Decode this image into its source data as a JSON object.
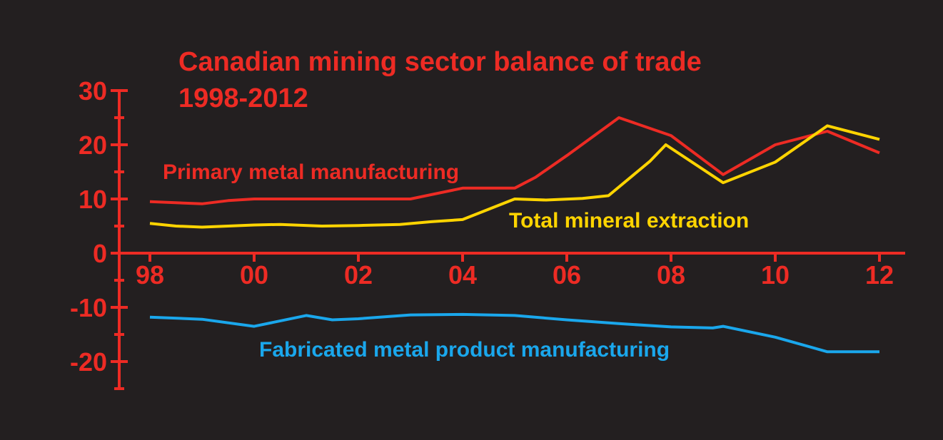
{
  "chart_data": {
    "type": "line",
    "title": "Canadian mining sector balance of trade",
    "subtitle": "1998-2012",
    "xlabel": "",
    "ylabel": "",
    "xlim": [
      1998,
      2012
    ],
    "ylim": [
      -25,
      30
    ],
    "x_ticks": [
      {
        "value": 1998,
        "label": "98"
      },
      {
        "value": 2000,
        "label": "00"
      },
      {
        "value": 2002,
        "label": "02"
      },
      {
        "value": 2004,
        "label": "04"
      },
      {
        "value": 2006,
        "label": "06"
      },
      {
        "value": 2008,
        "label": "08"
      },
      {
        "value": 2010,
        "label": "10"
      },
      {
        "value": 2012,
        "label": "12"
      }
    ],
    "y_ticks": [
      {
        "value": 30,
        "label": "30"
      },
      {
        "value": 20,
        "label": "20"
      },
      {
        "value": 10,
        "label": "10"
      },
      {
        "value": 0,
        "label": "0"
      },
      {
        "value": -10,
        "label": "-10"
      },
      {
        "value": -20,
        "label": "-20"
      }
    ],
    "y_minor_ticks": [
      25,
      15,
      5,
      -5,
      -15,
      -25
    ],
    "grid": false,
    "legend": "inline labels",
    "colors": {
      "background": "#231f20",
      "axis": "#ed2b24",
      "title": "#ed2b24"
    },
    "series": [
      {
        "name": "Primary metal manufacturing",
        "color": "#ed2b24",
        "x": [
          1998,
          1999,
          1999.5,
          2000,
          2001,
          2002,
          2003,
          2004,
          2005,
          2005.4,
          2006,
          2007,
          2008,
          2009,
          2010,
          2011,
          2012
        ],
        "values": [
          9.5,
          9.1,
          9.7,
          10,
          10,
          10,
          10,
          12,
          12,
          14,
          18,
          25,
          21.7,
          14.5,
          20,
          22.5,
          18.5
        ]
      },
      {
        "name": "Total mineral extraction",
        "color": "#ffd400",
        "x": [
          1998,
          1998.5,
          1999,
          2000,
          2000.5,
          2001.3,
          2002,
          2002.8,
          2003.4,
          2004,
          2005,
          2005.6,
          2006.3,
          2006.8,
          2007.6,
          2007.9,
          2009,
          2010,
          2011,
          2012
        ],
        "values": [
          5.5,
          5,
          4.8,
          5.2,
          5.3,
          5,
          5.1,
          5.3,
          5.8,
          6.2,
          10,
          9.8,
          10.1,
          10.6,
          17,
          20,
          13,
          16.8,
          23.5,
          21
        ]
      },
      {
        "name": "Fabricated metal product manufacturing",
        "color": "#1aa7ec",
        "x": [
          1998,
          1999,
          2000,
          2001,
          2001.5,
          2002,
          2003,
          2004,
          2005,
          2006,
          2007,
          2008,
          2008.8,
          2009,
          2010,
          2011,
          2012
        ],
        "values": [
          -11.8,
          -12.2,
          -13.5,
          -11.5,
          -12.3,
          -12.1,
          -11.4,
          -11.3,
          -11.5,
          -12.3,
          -13,
          -13.6,
          -13.8,
          -13.5,
          -15.5,
          -18.2,
          -18.2
        ]
      }
    ]
  }
}
